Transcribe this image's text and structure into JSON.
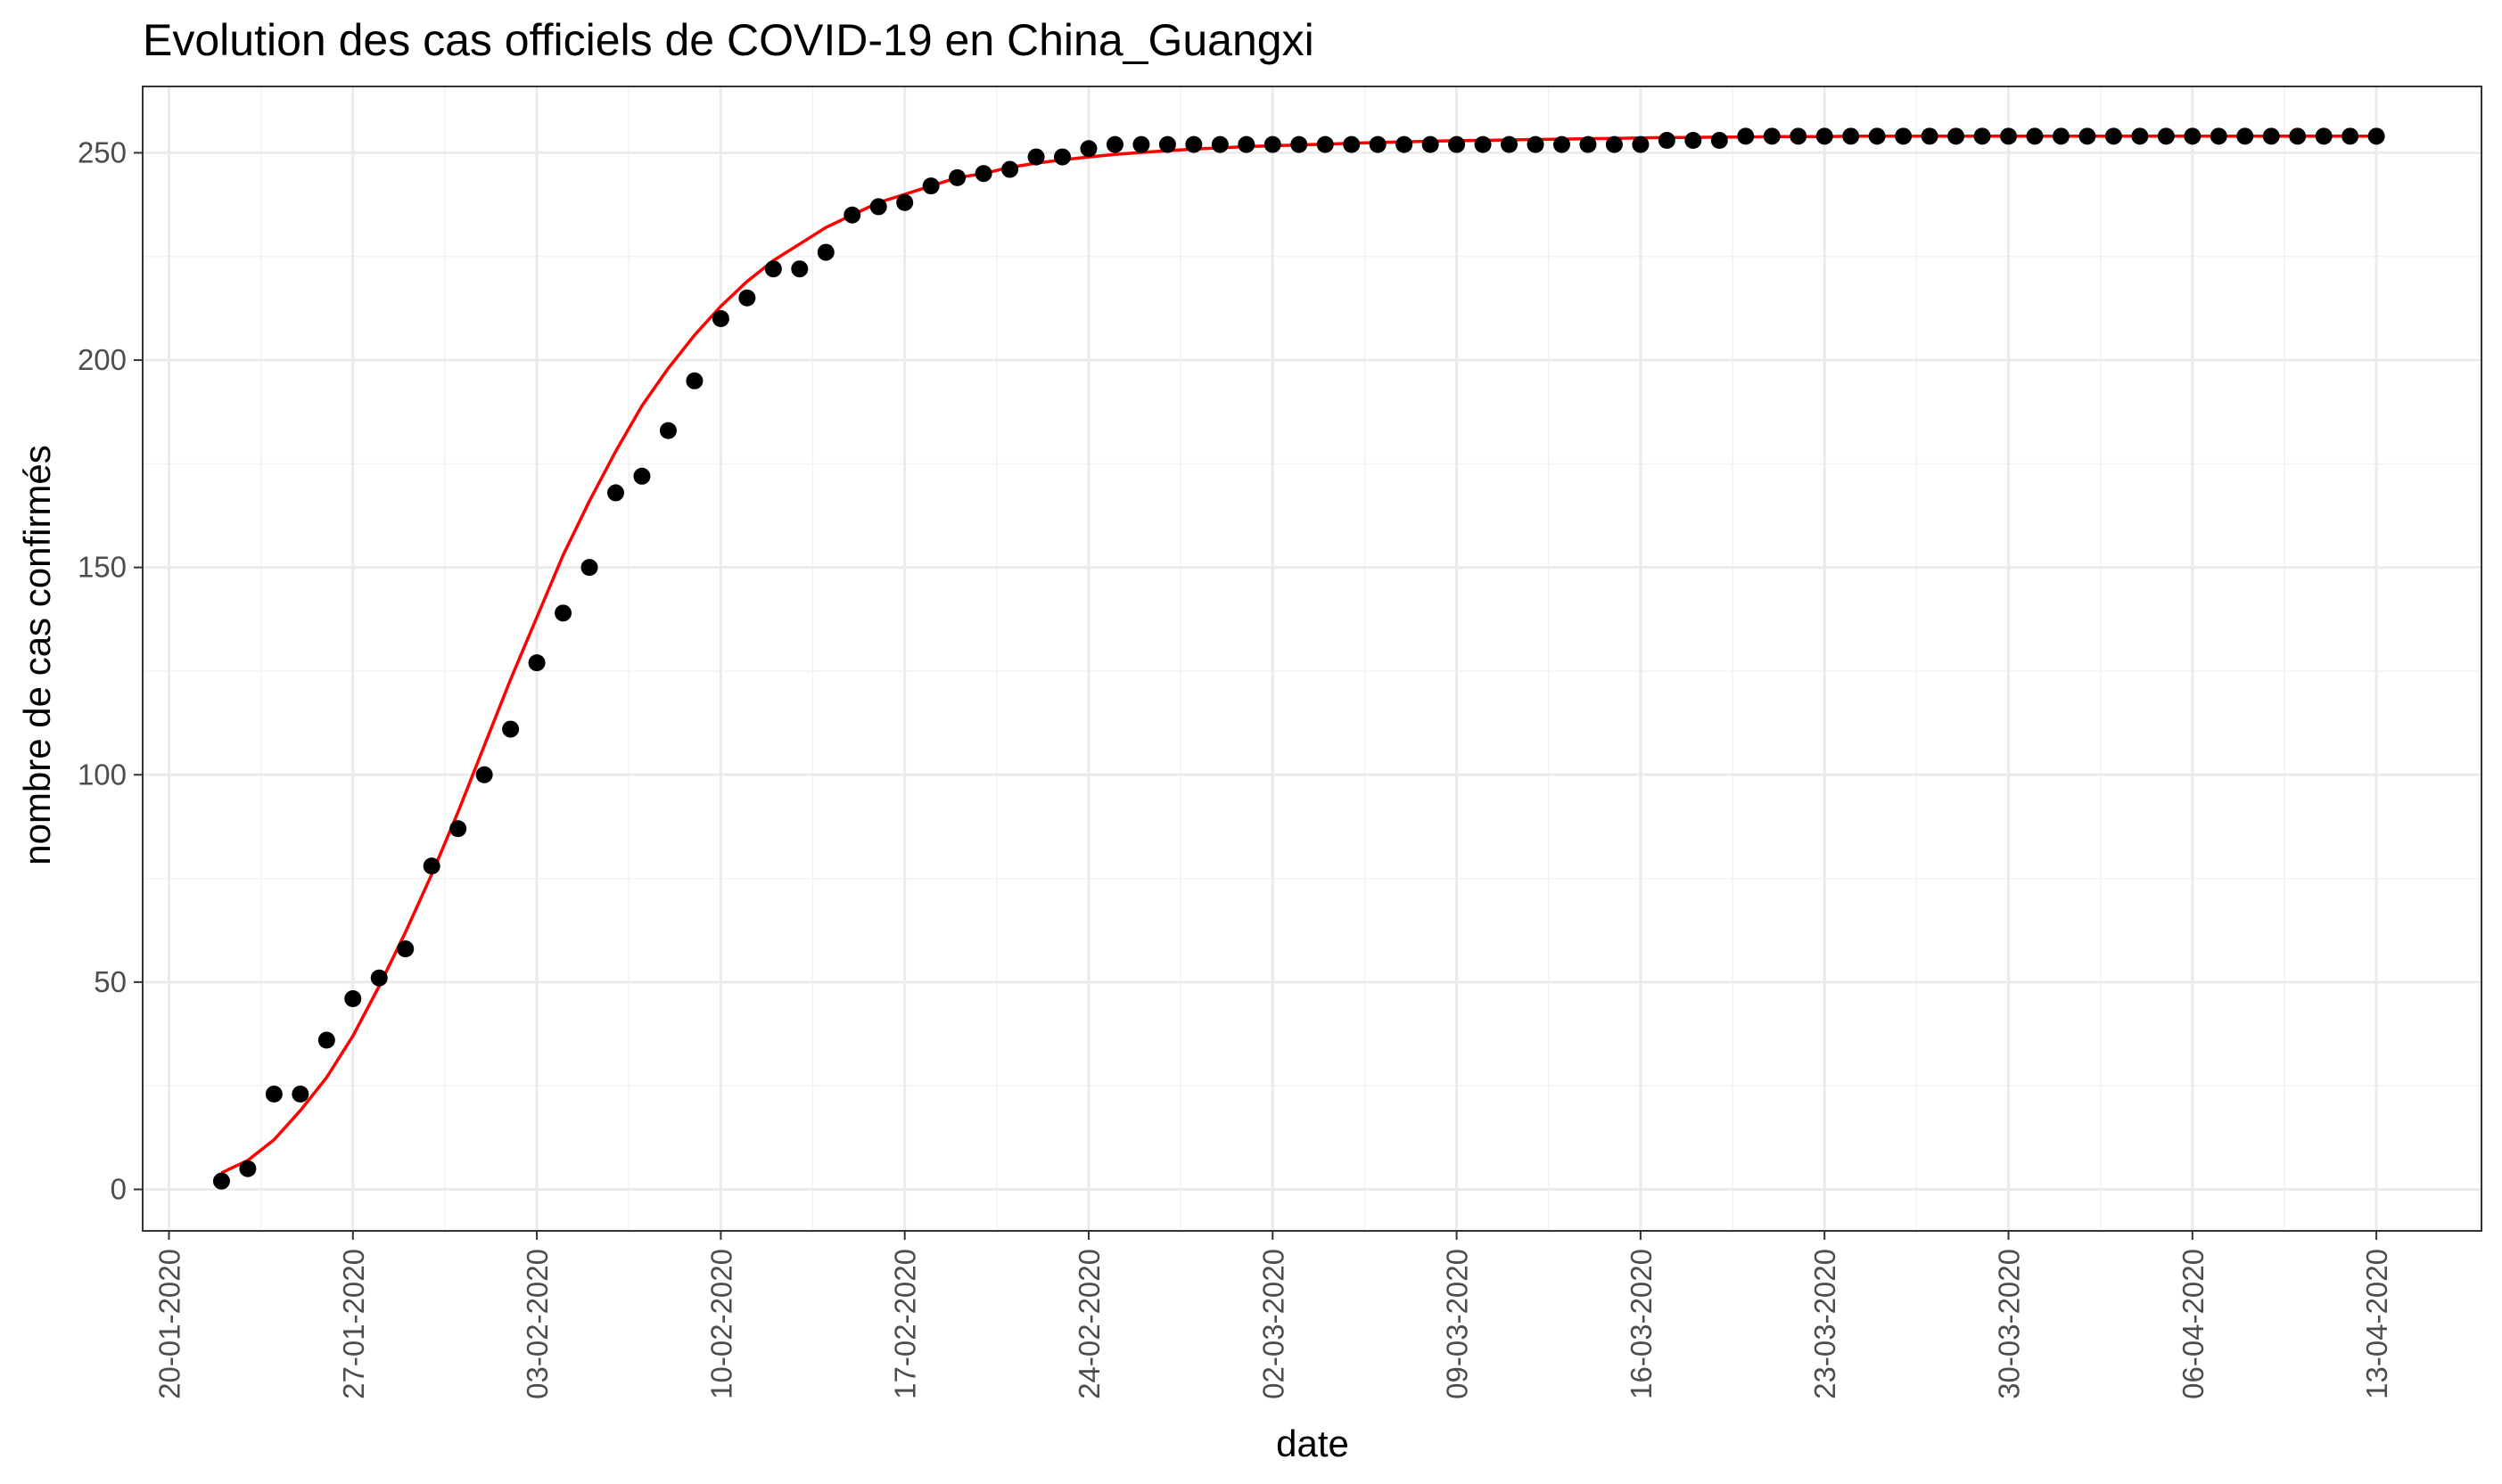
{
  "chart_data": {
    "type": "scatter",
    "title": "Evolution des cas officiels de COVID-19 en China_Guangxi",
    "xlabel": "date",
    "ylabel": "nombre de cas confirmés",
    "x_type": "date",
    "xlim": [
      "2020-01-19",
      "2020-04-17"
    ],
    "ylim": [
      -10,
      266
    ],
    "x_ticks": [
      "2020-01-20",
      "2020-01-27",
      "2020-02-03",
      "2020-02-10",
      "2020-02-17",
      "2020-02-24",
      "2020-03-02",
      "2020-03-09",
      "2020-03-16",
      "2020-03-23",
      "2020-03-30",
      "2020-04-06",
      "2020-04-13"
    ],
    "x_tick_labels": [
      "20-01-2020",
      "27-01-2020",
      "03-02-2020",
      "10-02-2020",
      "17-02-2020",
      "24-02-2020",
      "02-03-2020",
      "09-03-2020",
      "16-03-2020",
      "23-03-2020",
      "30-03-2020",
      "06-04-2020",
      "13-04-2020"
    ],
    "y_ticks": [
      0,
      50,
      100,
      150,
      200,
      250
    ],
    "y_tick_labels": [
      "0",
      "50",
      "100",
      "150",
      "200",
      "250"
    ],
    "grid": true,
    "legend": "none",
    "series": [
      {
        "kind": "points",
        "color": "#000000",
        "x": [
          "2020-01-22",
          "2020-01-23",
          "2020-01-24",
          "2020-01-25",
          "2020-01-26",
          "2020-01-27",
          "2020-01-28",
          "2020-01-29",
          "2020-01-30",
          "2020-01-31",
          "2020-02-01",
          "2020-02-02",
          "2020-02-03",
          "2020-02-04",
          "2020-02-05",
          "2020-02-06",
          "2020-02-07",
          "2020-02-08",
          "2020-02-09",
          "2020-02-10",
          "2020-02-11",
          "2020-02-12",
          "2020-02-13",
          "2020-02-14",
          "2020-02-15",
          "2020-02-16",
          "2020-02-17",
          "2020-02-18",
          "2020-02-19",
          "2020-02-20",
          "2020-02-21",
          "2020-02-22",
          "2020-02-23",
          "2020-02-24",
          "2020-02-25",
          "2020-02-26",
          "2020-02-27",
          "2020-02-28",
          "2020-02-29",
          "2020-03-01",
          "2020-03-02",
          "2020-03-03",
          "2020-03-04",
          "2020-03-05",
          "2020-03-06",
          "2020-03-07",
          "2020-03-08",
          "2020-03-09",
          "2020-03-10",
          "2020-03-11",
          "2020-03-12",
          "2020-03-13",
          "2020-03-14",
          "2020-03-15",
          "2020-03-16",
          "2020-03-17",
          "2020-03-18",
          "2020-03-19",
          "2020-03-20",
          "2020-03-21",
          "2020-03-22",
          "2020-03-23",
          "2020-03-24",
          "2020-03-25",
          "2020-03-26",
          "2020-03-27",
          "2020-03-28",
          "2020-03-29",
          "2020-03-30",
          "2020-03-31",
          "2020-04-01",
          "2020-04-02",
          "2020-04-03",
          "2020-04-04",
          "2020-04-05",
          "2020-04-06",
          "2020-04-07",
          "2020-04-08",
          "2020-04-09",
          "2020-04-10",
          "2020-04-11",
          "2020-04-12",
          "2020-04-13"
        ],
        "y": [
          2,
          5,
          23,
          23,
          36,
          46,
          51,
          58,
          78,
          87,
          100,
          111,
          127,
          139,
          150,
          168,
          172,
          183,
          195,
          210,
          215,
          222,
          222,
          226,
          235,
          237,
          238,
          242,
          244,
          245,
          246,
          249,
          249,
          251,
          252,
          252,
          252,
          252,
          252,
          252,
          252,
          252,
          252,
          252,
          252,
          252,
          252,
          252,
          252,
          252,
          252,
          252,
          252,
          252,
          252,
          253,
          253,
          253,
          254,
          254,
          254,
          254,
          254,
          254,
          254,
          254,
          254,
          254,
          254,
          254,
          254,
          254,
          254,
          254,
          254,
          254,
          254,
          254,
          254,
          254,
          254,
          254,
          254
        ]
      },
      {
        "kind": "line",
        "color": "#ff0000",
        "x": [
          "2020-01-22",
          "2020-01-23",
          "2020-01-24",
          "2020-01-25",
          "2020-01-26",
          "2020-01-27",
          "2020-01-28",
          "2020-01-29",
          "2020-01-30",
          "2020-01-31",
          "2020-02-01",
          "2020-02-02",
          "2020-02-03",
          "2020-02-04",
          "2020-02-05",
          "2020-02-06",
          "2020-02-07",
          "2020-02-08",
          "2020-02-09",
          "2020-02-10",
          "2020-02-11",
          "2020-02-12",
          "2020-02-13",
          "2020-02-14",
          "2020-02-15",
          "2020-02-16",
          "2020-02-17",
          "2020-02-18",
          "2020-02-19",
          "2020-02-20",
          "2020-02-21",
          "2020-02-22",
          "2020-02-23",
          "2020-02-24",
          "2020-02-25",
          "2020-02-26",
          "2020-02-27",
          "2020-02-28",
          "2020-02-29",
          "2020-03-01",
          "2020-03-02",
          "2020-03-03",
          "2020-03-04",
          "2020-03-05",
          "2020-03-06",
          "2020-03-07",
          "2020-03-08",
          "2020-03-09",
          "2020-03-10",
          "2020-03-11",
          "2020-03-12",
          "2020-03-13",
          "2020-03-14",
          "2020-03-15",
          "2020-03-16",
          "2020-03-17",
          "2020-03-18",
          "2020-03-19",
          "2020-03-20",
          "2020-03-21",
          "2020-03-22",
          "2020-03-23",
          "2020-03-24",
          "2020-03-25",
          "2020-03-26",
          "2020-03-27",
          "2020-03-28",
          "2020-03-29",
          "2020-03-30",
          "2020-03-31",
          "2020-04-01",
          "2020-04-02",
          "2020-04-03",
          "2020-04-04",
          "2020-04-05",
          "2020-04-06",
          "2020-04-07",
          "2020-04-08",
          "2020-04-09",
          "2020-04-10",
          "2020-04-11",
          "2020-04-12",
          "2020-04-13"
        ],
        "y": [
          4,
          7,
          12,
          19,
          27,
          37,
          49,
          62,
          76,
          91,
          107,
          123,
          138,
          153,
          166,
          178,
          189,
          198,
          206,
          213,
          219,
          224,
          228,
          232,
          235,
          238,
          240,
          242,
          244,
          245,
          246.5,
          247.5,
          248.3,
          249,
          249.6,
          250.1,
          250.5,
          250.9,
          251.2,
          251.5,
          251.7,
          251.9,
          252.1,
          252.3,
          252.5,
          252.6,
          252.8,
          252.9,
          253,
          253.1,
          253.2,
          253.3,
          253.4,
          253.5,
          253.6,
          253.7,
          253.7,
          253.8,
          253.8,
          253.9,
          253.9,
          253.9,
          254,
          254,
          254,
          254,
          254,
          254,
          254,
          254,
          254,
          254,
          254,
          254,
          254,
          254,
          254,
          254,
          254,
          254,
          254,
          254,
          254
        ]
      }
    ]
  }
}
